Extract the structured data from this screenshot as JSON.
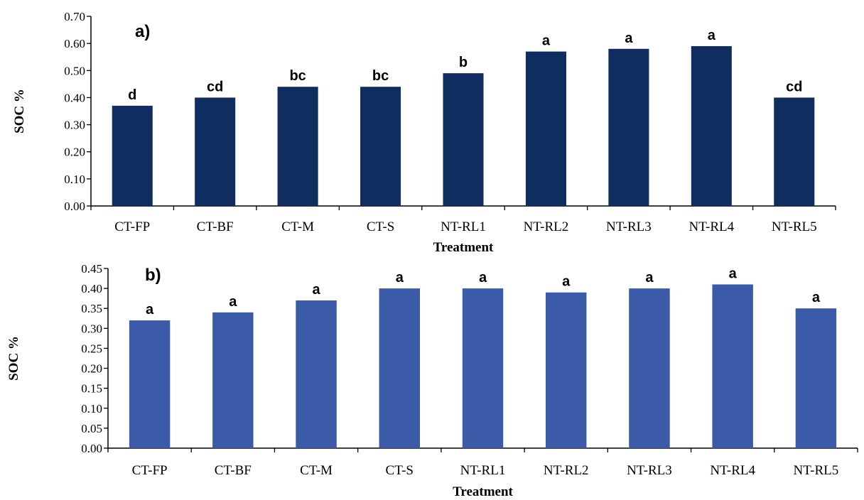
{
  "chart_data": [
    {
      "type": "bar",
      "panel_label": "a)",
      "categories": [
        "CT-FP",
        "CT-BF",
        "CT-M",
        "CT-S",
        "NT-RL1",
        "NT-RL2",
        "NT-RL3",
        "NT-RL4",
        "NT-RL5"
      ],
      "values": [
        0.37,
        0.4,
        0.44,
        0.44,
        0.49,
        0.57,
        0.58,
        0.59,
        0.4
      ],
      "significance": [
        "d",
        "cd",
        "bc",
        "bc",
        "b",
        "a",
        "a",
        "a",
        "cd"
      ],
      "xlabel": "Treatment",
      "ylabel": "SOC %",
      "ylim": [
        0,
        0.7
      ],
      "yticks": [
        "0.00",
        "0.10",
        "0.20",
        "0.30",
        "0.40",
        "0.50",
        "0.60",
        "0.70"
      ],
      "color": "#0f2d5e",
      "grid": false
    },
    {
      "type": "bar",
      "panel_label": "b)",
      "categories": [
        "CT-FP",
        "CT-BF",
        "CT-M",
        "CT-S",
        "NT-RL1",
        "NT-RL2",
        "NT-RL3",
        "NT-RL4",
        "NT-RL5"
      ],
      "values": [
        0.32,
        0.34,
        0.37,
        0.4,
        0.4,
        0.39,
        0.4,
        0.41,
        0.35
      ],
      "significance": [
        "a",
        "a",
        "a",
        "a",
        "a",
        "a",
        "a",
        "a",
        "a"
      ],
      "xlabel": "Treatment",
      "ylabel": "SOC %",
      "ylim": [
        0,
        0.45
      ],
      "yticks": [
        "0.00",
        "0.05",
        "0.10",
        "0.15",
        "0.20",
        "0.25",
        "0.30",
        "0.35",
        "0.40",
        "0.45"
      ],
      "color": "#3b5ba8",
      "grid": false
    }
  ]
}
